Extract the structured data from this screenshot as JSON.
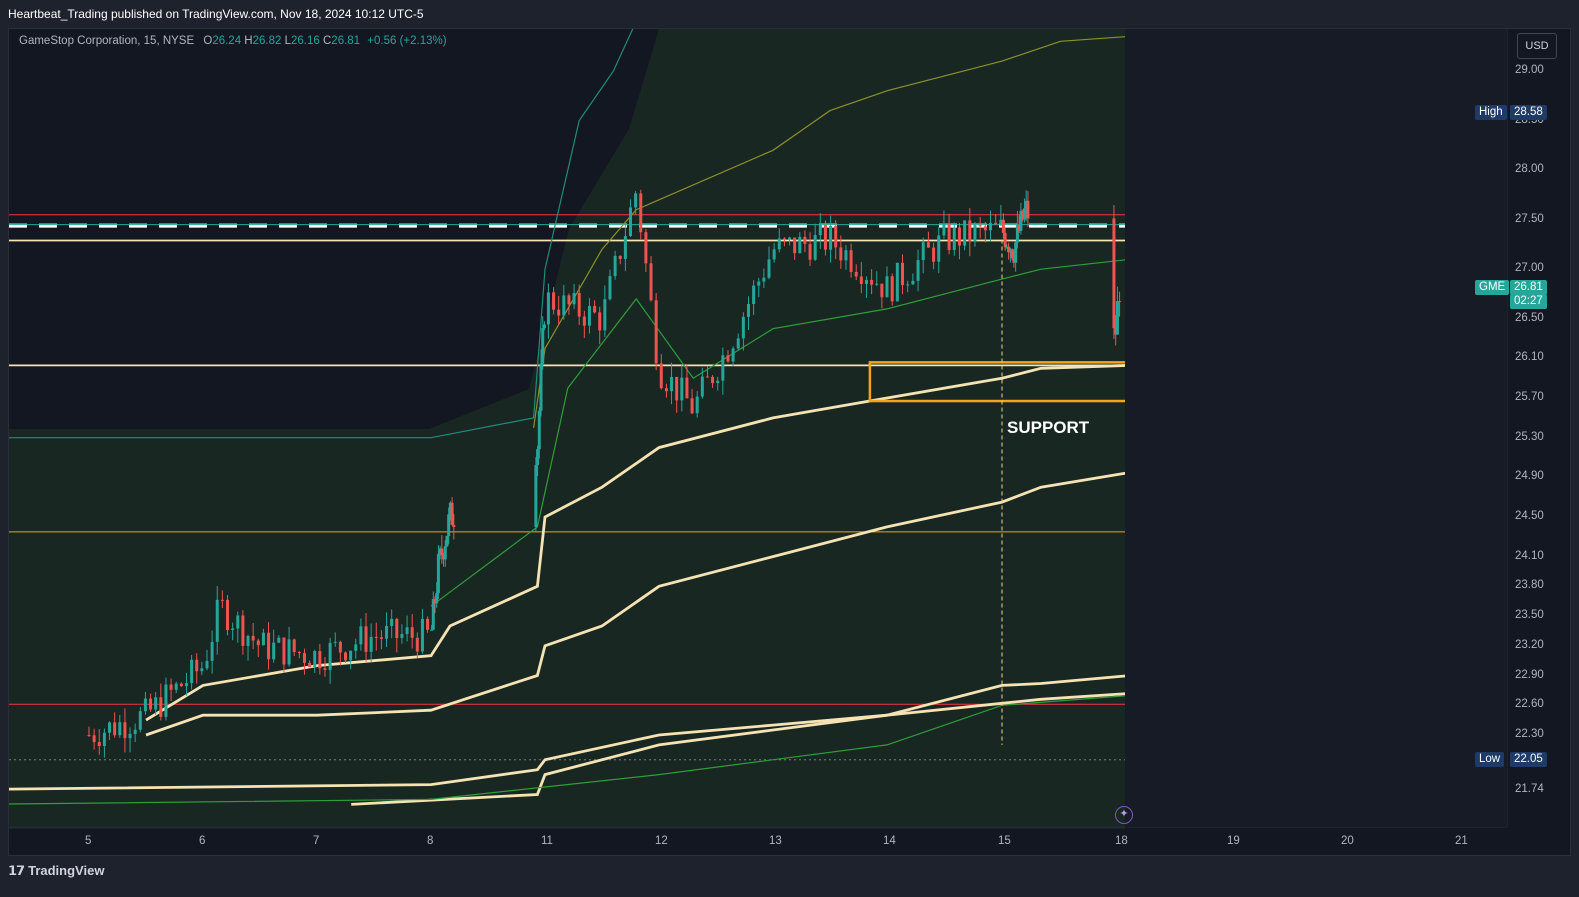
{
  "header": {
    "published": "Heartbeat_Trading published on TradingView.com, Nov 18, 2024 10:12 UTC-5"
  },
  "legend": {
    "symbol": "GameStop Corporation, 15, NYSE",
    "o_label": "O",
    "o_value": "26.24",
    "h_label": "H",
    "h_value": "26.82",
    "l_label": "L",
    "l_value": "26.16",
    "c_label": "C",
    "c_value": "26.81",
    "change": "+0.56 (+2.13%)"
  },
  "currency_button": "USD",
  "annotation": {
    "support_label": "SUPPORT"
  },
  "badges": {
    "high_label": "High",
    "high_value": "28.58",
    "low_label": "Low",
    "low_value": "22.05",
    "ticker": "GME",
    "last_price": "26.81",
    "countdown": "02:27"
  },
  "footer": {
    "logo_text": "TradingView"
  },
  "colors": {
    "background": "#131722",
    "up_candle": "#26a69a",
    "down_candle": "#ef5350",
    "band_cream": "#f5e3b3",
    "orange_box": "#f7a21b",
    "olive_band": "#a0a030",
    "teal_band": "#26a69a",
    "green_band": "#4caf50",
    "red_line": "#f23645",
    "high_low_badge": "#1e3a66"
  },
  "chart_data": {
    "type": "line",
    "title": "",
    "symbol": "GME",
    "interval": "15",
    "exchange": "NYSE",
    "xlabel": "",
    "ylabel": "",
    "x_ticks": [
      "5",
      "6",
      "7",
      "8",
      "11",
      "12",
      "13",
      "14",
      "15",
      "18",
      "19",
      "20",
      "21"
    ],
    "y_ticks": [
      "29.00",
      "28.50",
      "28.00",
      "27.50",
      "27.00",
      "26.50",
      "26.10",
      "25.70",
      "25.30",
      "24.90",
      "24.50",
      "24.10",
      "23.80",
      "23.50",
      "23.20",
      "22.90",
      "22.60",
      "22.30",
      "21.74"
    ],
    "ylim": [
      21.6,
      29.3
    ],
    "scale": "linear",
    "grid": false,
    "candles_close_approx": [
      {
        "x": "5",
        "price": 22.3
      },
      {
        "x": "5.5",
        "price": 22.5
      },
      {
        "x": "6",
        "price": 23.0
      },
      {
        "x": "6.15",
        "price": 23.6
      },
      {
        "x": "6.5",
        "price": 23.2
      },
      {
        "x": "7",
        "price": 23.1
      },
      {
        "x": "7.5",
        "price": 23.3
      },
      {
        "x": "8",
        "price": 23.3
      },
      {
        "x": "8.2",
        "price": 24.0
      },
      {
        "x": "8.5",
        "price": 24.5
      },
      {
        "x": "10.8",
        "price": 25.2
      },
      {
        "x": "11",
        "price": 26.7
      },
      {
        "x": "11.5",
        "price": 26.5
      },
      {
        "x": "11.8",
        "price": 27.8
      },
      {
        "x": "12",
        "price": 26.0
      },
      {
        "x": "12.3",
        "price": 25.6
      },
      {
        "x": "12.6",
        "price": 26.2
      },
      {
        "x": "13",
        "price": 27.2
      },
      {
        "x": "13.5",
        "price": 27.3
      },
      {
        "x": "14",
        "price": 26.8
      },
      {
        "x": "14.5",
        "price": 27.3
      },
      {
        "x": "15",
        "price": 27.4
      },
      {
        "x": "15.3",
        "price": 27.2
      },
      {
        "x": "15.6",
        "price": 27.6
      },
      {
        "x": "17.9",
        "price": 26.3
      },
      {
        "x": "18",
        "price": 26.81
      }
    ],
    "horizontal_levels": [
      {
        "price": 27.44,
        "style": "dashed",
        "color": "#ffffff"
      },
      {
        "price": 27.55,
        "style": "solid",
        "color": "#f23645"
      },
      {
        "price": 27.45,
        "style": "solid",
        "color": "#26a69a"
      },
      {
        "price": 27.29,
        "style": "solid",
        "color": "#f5e3b3"
      },
      {
        "price": 26.03,
        "style": "solid",
        "color": "#f5e3b3"
      },
      {
        "price": 24.35,
        "style": "solid",
        "color": "#f7a21b"
      },
      {
        "price": 22.61,
        "style": "solid",
        "color": "#f23645"
      },
      {
        "price": 22.05,
        "style": "dotted",
        "color": "#787b86"
      }
    ],
    "support_zone": {
      "price_top": 26.06,
      "price_bottom": 25.67
    },
    "high": 28.58,
    "low": 22.05,
    "last": 26.81
  }
}
